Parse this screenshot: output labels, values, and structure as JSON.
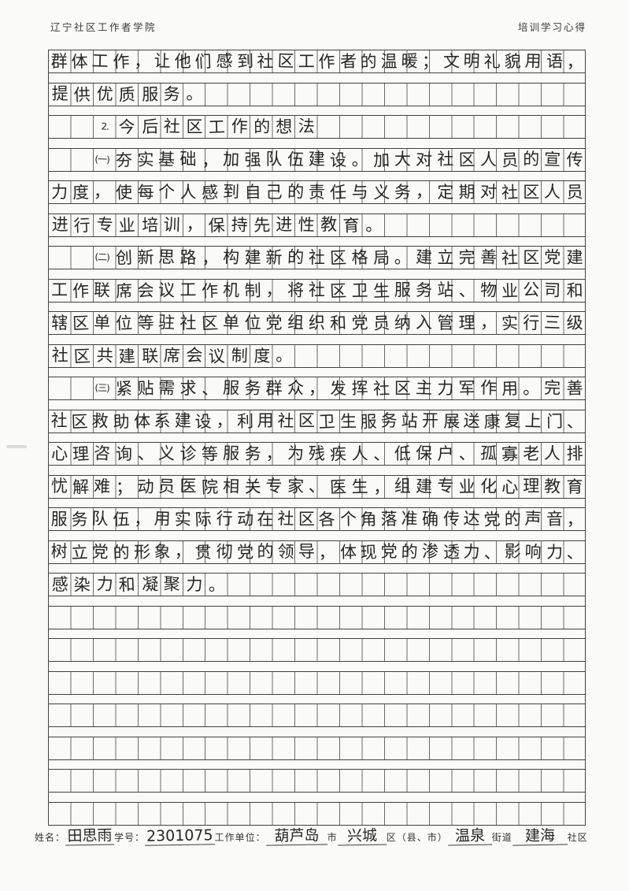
{
  "header": {
    "left": "辽宁社区工作者学院",
    "right": "培训学习心得"
  },
  "grid": {
    "columns": 24,
    "total_rows": 24,
    "lines": [
      {
        "indent": 0,
        "text": "群体工作，让他们感到社区工作者的温暖；文明礼貌用语，"
      },
      {
        "indent": 0,
        "text": "提供优质服务。"
      },
      {
        "indent": 2,
        "text": "2.今后社区工作的想法"
      },
      {
        "indent": 2,
        "text": "(一)夯实基础，加强队伍建设。加大对社区人员的宣传"
      },
      {
        "indent": 0,
        "text": "力度，使每个人感到自己的责任与义务，定期对社区人员"
      },
      {
        "indent": 0,
        "text": "进行专业培训，保持先进性教育。"
      },
      {
        "indent": 2,
        "text": "(二)创新思路，构建新的社区格局。建立完善社区党建"
      },
      {
        "indent": 0,
        "text": "工作联席会议工作机制，将社区卫生服务站、物业公司和"
      },
      {
        "indent": 0,
        "text": "辖区单位等驻社区单位党组织和党员纳入管理，实行三级"
      },
      {
        "indent": 0,
        "text": "社区共建联席会议制度。"
      },
      {
        "indent": 2,
        "text": "(三)紧贴需求、服务群众，发挥社区主力军作用。完善"
      },
      {
        "indent": 0,
        "text": "社区救助体系建设，利用社区卫生服务站开展送康复上门、"
      },
      {
        "indent": 0,
        "text": "心理咨询、义诊等服务，为残疾人、低保户、孤寡老人排"
      },
      {
        "indent": 0,
        "text": "忧解难；动员医院相关专家、医生，组建专业化心理教育"
      },
      {
        "indent": 0,
        "text": "服务队伍，用实际行动在社区各个角落准确传达党的声音，"
      },
      {
        "indent": 0,
        "text": "树立党的形象，贯彻党的领导，体现党的渗透力、影响力、"
      },
      {
        "indent": 0,
        "text": "感染力和凝聚力。"
      }
    ]
  },
  "footer": {
    "name_label": "姓名：",
    "name_value": "田思雨",
    "id_label": "学号：",
    "id_value": "2301075",
    "unit_label": "工作单位：",
    "city_value": "葫芦岛",
    "city_suffix": "市",
    "district_value": "兴城",
    "district_suffix": "区（县、市）",
    "street_value": "温泉",
    "street_suffix": "街道",
    "community_value": "建海",
    "community_suffix": "社区"
  },
  "colors": {
    "paper": "#fafaf8",
    "grid_line": "#6a6a6a",
    "grid_border": "#414141",
    "ink": "#262626"
  }
}
